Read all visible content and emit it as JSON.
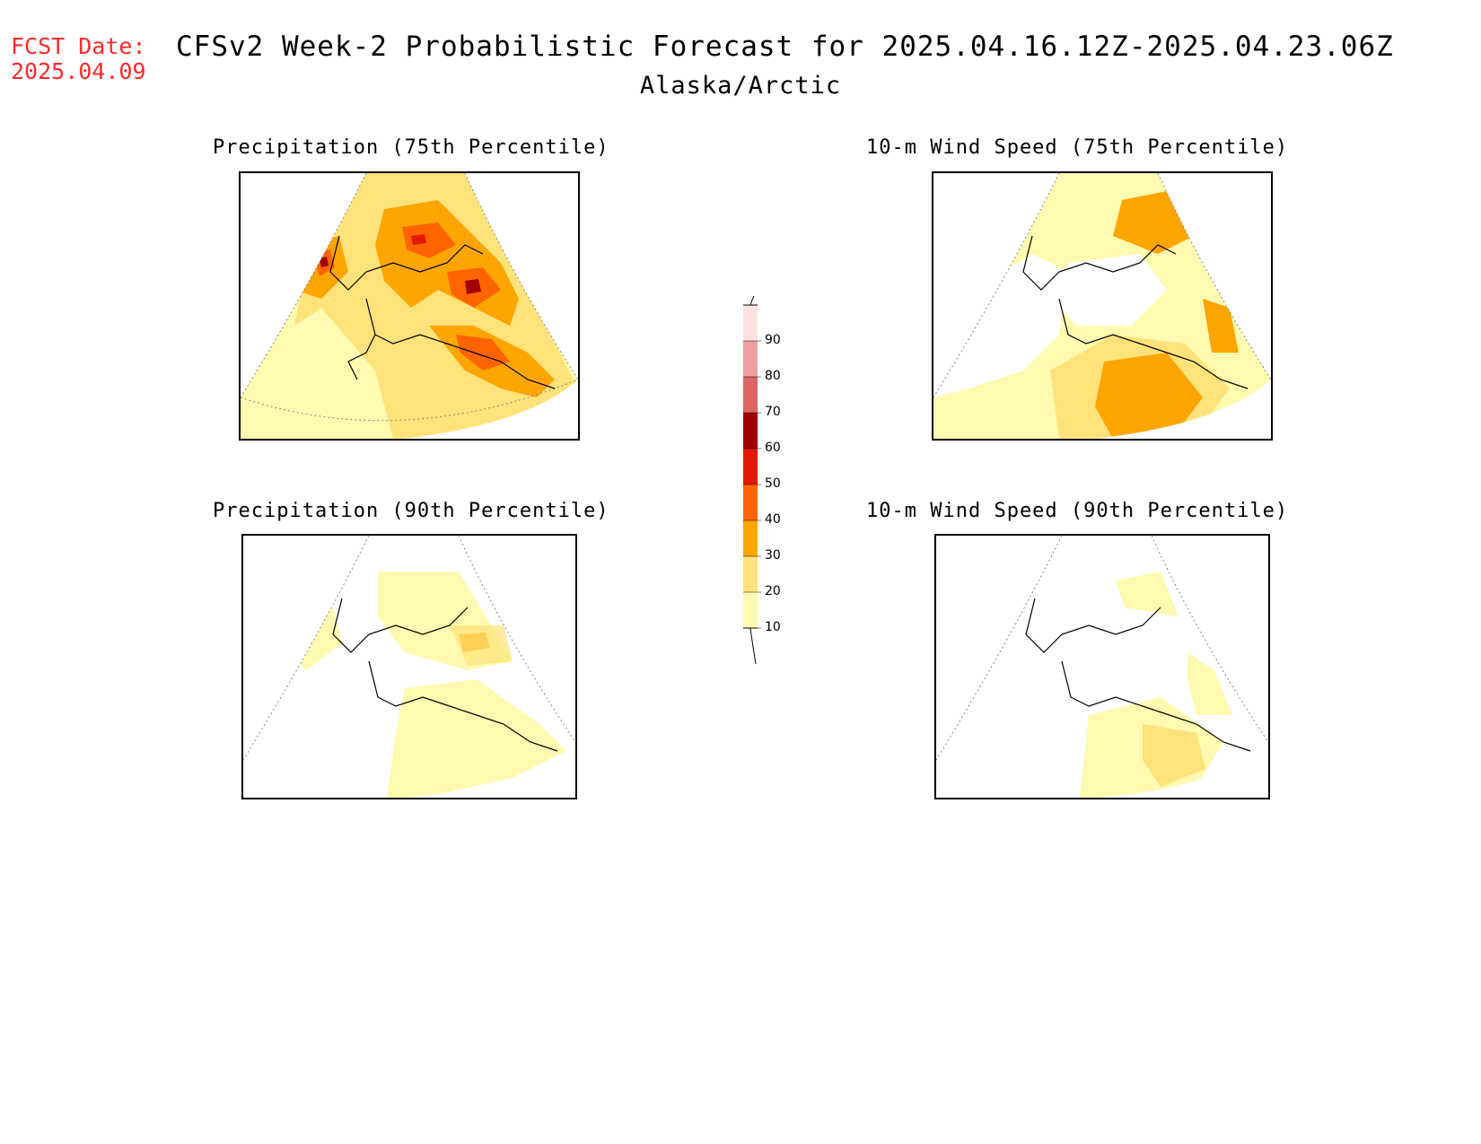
{
  "header": {
    "fcst_label": "FCST Date:",
    "fcst_date": "2025.04.09",
    "title": "CFSv2 Week-2 Probabilistic Forecast for 2025.04.16.12Z-2025.04.23.06Z",
    "region": "Alaska/Arctic"
  },
  "panels": [
    {
      "id": "precip75",
      "title": "Precipitation (75th Percentile)"
    },
    {
      "id": "wind75",
      "title": "10-m Wind Speed (75th Percentile)"
    },
    {
      "id": "precip90",
      "title": "Precipitation (90th Percentile)"
    },
    {
      "id": "wind90",
      "title": "10-m Wind Speed (90th Percentile)"
    }
  ],
  "colorbar": {
    "levels": [
      "10",
      "20",
      "30",
      "40",
      "50",
      "60",
      "70",
      "80",
      "90"
    ],
    "colors": [
      "#fffaaf",
      "#ffe27a",
      "#ffa500",
      "#ff6400",
      "#e41a00",
      "#a00000",
      "#de6464",
      "#f0a0a0",
      "#fde1e1"
    ]
  }
}
